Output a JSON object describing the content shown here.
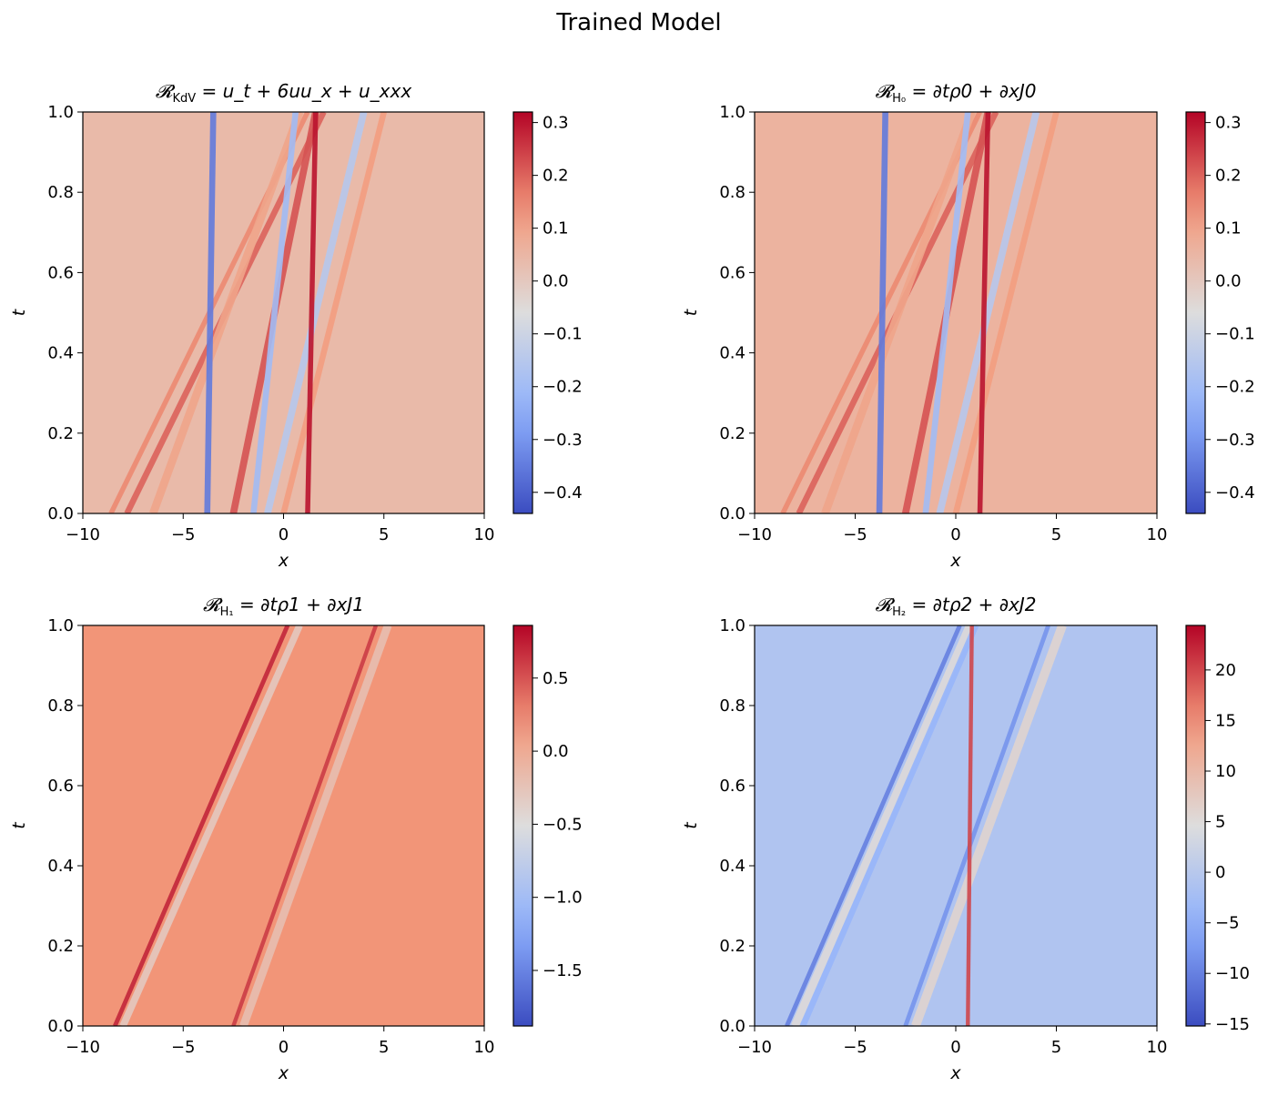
{
  "suptitle": "Trained Model",
  "chart_data": [
    {
      "type": "heatmap",
      "title": "𝓡KdV = ut + 6uux + uxxx",
      "title_parts": {
        "lhs": "𝓡",
        "lhs_sub": "KdV",
        "rhs": "= u_t + 6uu_x + u_xxx"
      },
      "xlabel": "x",
      "ylabel": "t",
      "xlim": [
        -10,
        10
      ],
      "ylim": [
        0,
        1
      ],
      "xticks": [
        "−10",
        "−5",
        "0",
        "5",
        "10"
      ],
      "yticks": [
        "0.0",
        "0.2",
        "0.4",
        "0.6",
        "0.8",
        "1.0"
      ],
      "colormap": "coolwarm",
      "colorbar": {
        "min": -0.44,
        "max": 0.32,
        "ticks": [
          0.3,
          0.2,
          0.1,
          0.0,
          -0.1,
          -0.2,
          -0.3,
          -0.4
        ],
        "tick_labels": [
          "0.3",
          "0.2",
          "0.1",
          "0.0",
          "−0.1",
          "−0.2",
          "−0.3",
          "−0.4"
        ]
      },
      "background_value": 0.04,
      "features": [
        {
          "x0": -8.6,
          "x1": 1.2,
          "value": 0.15,
          "width": 0.25
        },
        {
          "x0": -7.8,
          "x1": 2.0,
          "value": 0.2,
          "width": 0.3
        },
        {
          "x0": -6.5,
          "x1": 0.8,
          "value": 0.1,
          "width": 0.4
        },
        {
          "x0": -2.5,
          "x1": 1.6,
          "value": 0.22,
          "width": 0.35
        },
        {
          "x0": -1.5,
          "x1": 0.6,
          "value": -0.2,
          "width": 0.3
        },
        {
          "x0": -0.8,
          "x1": 4.0,
          "value": -0.15,
          "width": 0.35
        },
        {
          "x0": 0.0,
          "x1": 5.0,
          "value": 0.12,
          "width": 0.3
        },
        {
          "x0": -3.8,
          "x1": -3.5,
          "value": -0.35,
          "width": 0.3
        },
        {
          "x0": 1.2,
          "x1": 1.6,
          "value": 0.3,
          "width": 0.25
        }
      ]
    },
    {
      "type": "heatmap",
      "title": "𝓡H0 = ∂tρ0 + ∂xJ0",
      "title_parts": {
        "lhs": "𝓡",
        "lhs_sub": "H₀",
        "rhs": "= ∂tρ0 + ∂xJ0"
      },
      "xlabel": "x",
      "ylabel": "t",
      "xlim": [
        -10,
        10
      ],
      "ylim": [
        0,
        1
      ],
      "xticks": [
        "−10",
        "−5",
        "0",
        "5",
        "10"
      ],
      "yticks": [
        "0.0",
        "0.2",
        "0.4",
        "0.6",
        "0.8",
        "1.0"
      ],
      "colormap": "coolwarm",
      "colorbar": {
        "min": -0.44,
        "max": 0.32,
        "ticks": [
          0.3,
          0.2,
          0.1,
          0.0,
          -0.1,
          -0.2,
          -0.3,
          -0.4
        ],
        "tick_labels": [
          "0.3",
          "0.2",
          "0.1",
          "0.0",
          "−0.1",
          "−0.2",
          "−0.3",
          "−0.4"
        ]
      },
      "background_value": 0.06,
      "features": [
        {
          "x0": -8.6,
          "x1": 1.2,
          "value": 0.15,
          "width": 0.25
        },
        {
          "x0": -7.8,
          "x1": 2.0,
          "value": 0.2,
          "width": 0.3
        },
        {
          "x0": -6.5,
          "x1": 0.8,
          "value": 0.1,
          "width": 0.4
        },
        {
          "x0": -2.5,
          "x1": 1.6,
          "value": 0.22,
          "width": 0.35
        },
        {
          "x0": -1.5,
          "x1": 0.6,
          "value": -0.2,
          "width": 0.3
        },
        {
          "x0": -0.8,
          "x1": 4.0,
          "value": -0.15,
          "width": 0.35
        },
        {
          "x0": 0.0,
          "x1": 5.0,
          "value": 0.12,
          "width": 0.3
        },
        {
          "x0": -3.8,
          "x1": -3.5,
          "value": -0.35,
          "width": 0.3
        },
        {
          "x0": 1.2,
          "x1": 1.6,
          "value": 0.3,
          "width": 0.25
        }
      ]
    },
    {
      "type": "heatmap",
      "title": "𝓡H1 = ∂tρ1 + ∂xJ1",
      "title_parts": {
        "lhs": "𝓡",
        "lhs_sub": "H₁",
        "rhs": "= ∂tρ1 + ∂xJ1"
      },
      "xlabel": "x",
      "ylabel": "t",
      "xlim": [
        -10,
        10
      ],
      "ylim": [
        0,
        1
      ],
      "xticks": [
        "−10",
        "−5",
        "0",
        "5",
        "10"
      ],
      "yticks": [
        "0.0",
        "0.2",
        "0.4",
        "0.6",
        "0.8",
        "1.0"
      ],
      "colormap": "coolwarm",
      "colorbar": {
        "min": -1.88,
        "max": 0.86,
        "ticks": [
          0.5,
          0.0,
          -0.5,
          -1.0,
          -1.5
        ],
        "tick_labels": [
          "0.5",
          "0.0",
          "−0.5",
          "−1.0",
          "−1.5"
        ]
      },
      "background_value": 0.2,
      "features": [
        {
          "x0": -8.4,
          "x1": 0.2,
          "value": 0.7,
          "width": 0.22
        },
        {
          "x0": -8.0,
          "x1": 0.8,
          "value": -0.3,
          "width": 0.35
        },
        {
          "x0": -2.5,
          "x1": 4.6,
          "value": 0.6,
          "width": 0.2
        },
        {
          "x0": -2.0,
          "x1": 5.2,
          "value": -0.2,
          "width": 0.4
        }
      ]
    },
    {
      "type": "heatmap",
      "title": "𝓡H2 = ∂tρ2 + ∂xJ2",
      "title_parts": {
        "lhs": "𝓡",
        "lhs_sub": "H₂",
        "rhs": "= ∂tρ2 + ∂xJ2"
      },
      "xlabel": "x",
      "ylabel": "t",
      "xlim": [
        -10,
        10
      ],
      "ylim": [
        0,
        1
      ],
      "xticks": [
        "−10",
        "−5",
        "0",
        "5",
        "10"
      ],
      "yticks": [
        "0.0",
        "0.2",
        "0.4",
        "0.6",
        "0.8",
        "1.0"
      ],
      "colormap": "coolwarm",
      "colorbar": {
        "min": -15.2,
        "max": 24.4,
        "ticks": [
          20,
          15,
          10,
          5,
          0,
          -5,
          -10,
          -15
        ],
        "tick_labels": [
          "20",
          "15",
          "10",
          "5",
          "0",
          "−5",
          "−10",
          "−15"
        ]
      },
      "background_value": -1.0,
      "features": [
        {
          "x0": -8.4,
          "x1": 0.2,
          "value": -10,
          "width": 0.22
        },
        {
          "x0": -8.0,
          "x1": 0.7,
          "value": 5,
          "width": 0.4
        },
        {
          "x0": -7.6,
          "x1": 1.0,
          "value": -4,
          "width": 0.3
        },
        {
          "x0": -2.5,
          "x1": 4.6,
          "value": -8,
          "width": 0.22
        },
        {
          "x0": -2.0,
          "x1": 5.3,
          "value": 6,
          "width": 0.45
        },
        {
          "x0": 0.6,
          "x1": 0.8,
          "value": 20,
          "width": 0.2
        }
      ]
    }
  ]
}
